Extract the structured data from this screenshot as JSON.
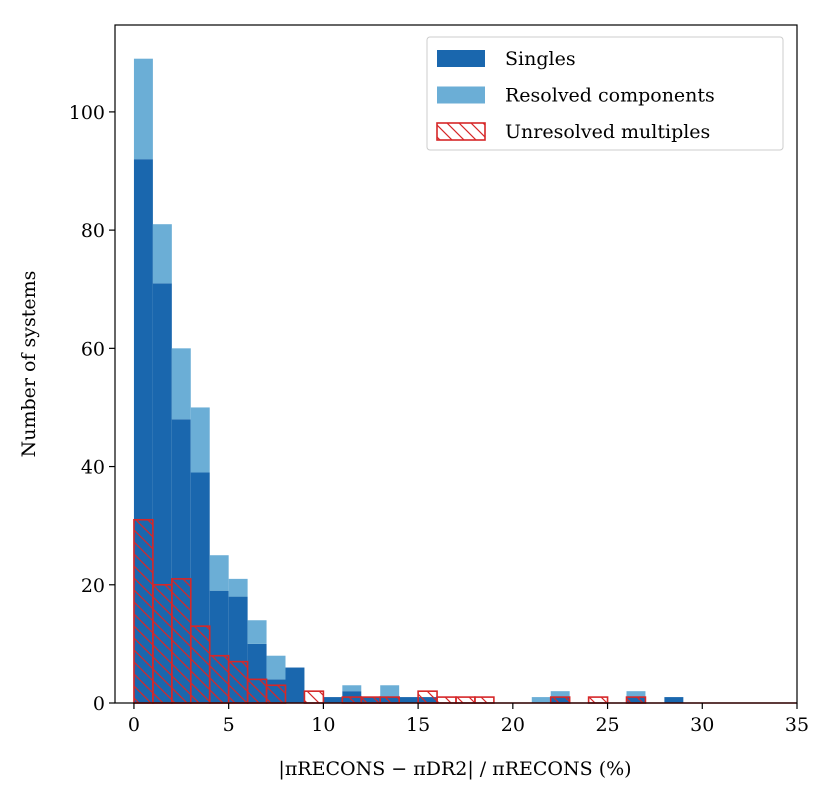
{
  "chart_data": {
    "type": "histogram",
    "xlabel": "|πRECONS − πDR2| / πRECONS  (%)",
    "ylabel": "Number of systems",
    "bins": [
      0,
      1,
      2,
      3,
      4,
      5,
      6,
      7,
      8,
      9,
      10,
      11,
      12,
      13,
      14,
      15,
      16,
      17,
      18,
      19,
      20,
      21,
      22,
      23,
      24,
      25,
      26,
      27,
      28,
      29,
      30,
      31,
      32,
      33,
      34,
      35
    ],
    "series": [
      {
        "name": "Singles",
        "color": "#1a67ae",
        "style": "stacked",
        "values": [
          92,
          71,
          48,
          39,
          19,
          18,
          10,
          4,
          6,
          0,
          1,
          2,
          1,
          1,
          1,
          1,
          0,
          0,
          0,
          0,
          0,
          0,
          1,
          0,
          0,
          0,
          1,
          0,
          1,
          0,
          0,
          0,
          0,
          0,
          0
        ]
      },
      {
        "name": "Resolved components",
        "color": "#6baed6",
        "style": "stacked",
        "values": [
          17,
          10,
          12,
          11,
          6,
          3,
          4,
          4,
          0,
          0,
          0,
          1,
          0,
          2,
          0,
          0,
          0,
          0,
          0,
          0,
          0,
          1,
          1,
          0,
          0,
          0,
          1,
          0,
          0,
          0,
          0,
          0,
          0,
          0,
          0
        ]
      },
      {
        "name": "Unresolved multiples",
        "color": "#d62728",
        "style": "hatched-step",
        "values": [
          31,
          20,
          21,
          13,
          8,
          7,
          4,
          3,
          0,
          2,
          0,
          1,
          1,
          1,
          0,
          2,
          1,
          1,
          1,
          0,
          0,
          0,
          1,
          0,
          1,
          0,
          1,
          0,
          0,
          0,
          0,
          0,
          0,
          0,
          0
        ]
      }
    ],
    "xlim": [
      -1,
      35
    ],
    "ylim": [
      0,
      114.7
    ],
    "xticks": [
      0,
      5,
      10,
      15,
      20,
      25,
      30,
      35
    ],
    "yticks": [
      0,
      20,
      40,
      60,
      80,
      100
    ],
    "legend": "upper right"
  }
}
